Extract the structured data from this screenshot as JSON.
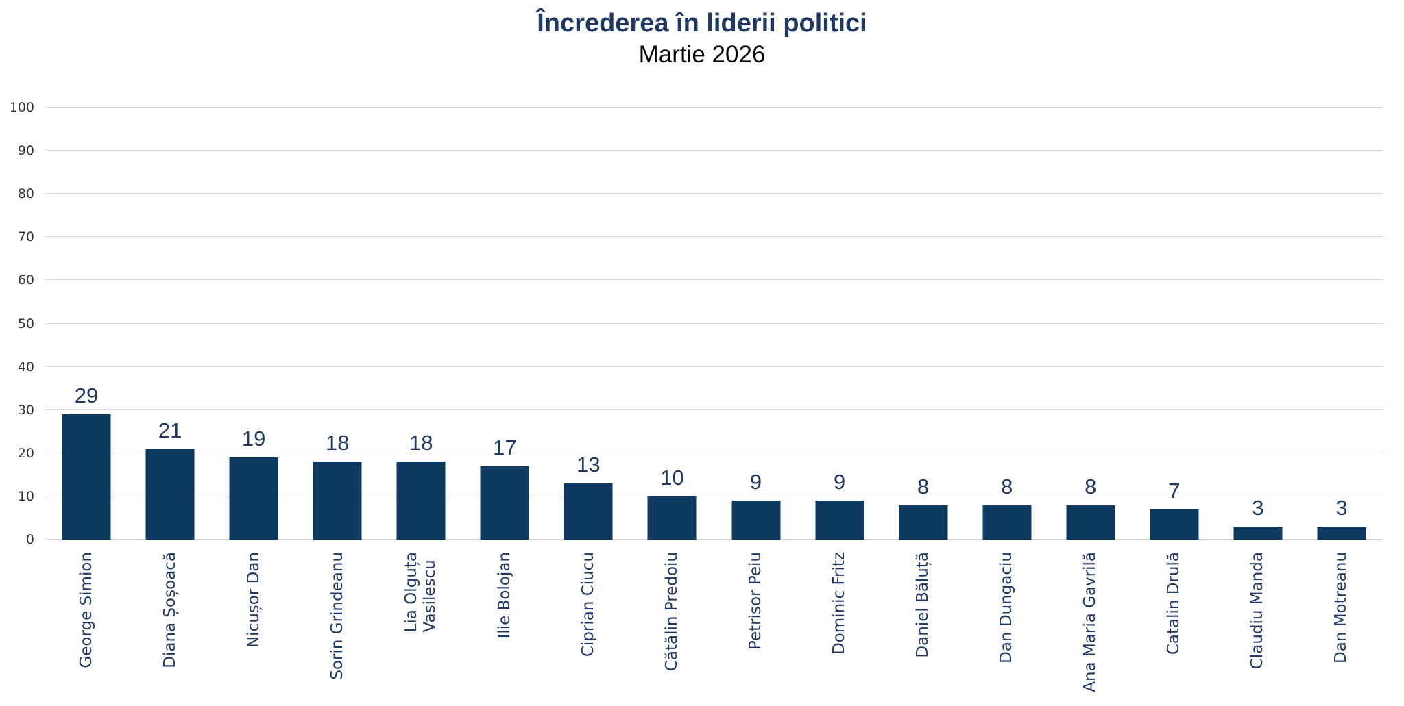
{
  "header": {
    "title": "Încrederea în liderii politici",
    "subtitle": "Martie 2026"
  },
  "chart_data": {
    "type": "bar",
    "title": "Încrederea în liderii politici",
    "subtitle": "Martie 2026",
    "categories": [
      "George Simion",
      "Diana Șoșoacă",
      "Nicușor Dan",
      "Sorin Grindeanu",
      "Lia Olguța Vasilescu",
      "Ilie Bolojan",
      "Ciprian Ciucu",
      "Cătălin Predoiu",
      "Petrisor Peiu",
      "Dominic Fritz",
      "Daniel Băluță",
      "Dan Dungaciu",
      "Ana Maria Gavrilă",
      "Catalin Drulă",
      "Claudiu Manda",
      "Dan Motreanu"
    ],
    "category_display_lines": [
      [
        "George Simion"
      ],
      [
        "Diana Șoșoacă"
      ],
      [
        "Nicușor Dan"
      ],
      [
        "Sorin Grindeanu"
      ],
      [
        "Lia Olguța",
        "Vasilescu"
      ],
      [
        "Ilie Bolojan"
      ],
      [
        "Ciprian Ciucu"
      ],
      [
        "Cătălin Predoiu"
      ],
      [
        "Petrisor Peiu"
      ],
      [
        "Dominic Fritz"
      ],
      [
        "Daniel Băluță"
      ],
      [
        "Dan Dungaciu"
      ],
      [
        "Ana Maria Gavrilă"
      ],
      [
        "Catalin Drulă"
      ],
      [
        "Claudiu Manda"
      ],
      [
        "Dan Motreanu"
      ]
    ],
    "values": [
      29,
      21,
      19,
      18,
      18,
      17,
      13,
      10,
      9,
      9,
      8,
      8,
      8,
      7,
      3,
      3
    ],
    "data_labels_shown": true,
    "xlabel": "",
    "ylabel": "",
    "ylim": [
      0,
      100
    ],
    "yticks": [
      "0",
      "10",
      "20",
      "30",
      "40",
      "50",
      "60",
      "70",
      "80",
      "90",
      "100"
    ],
    "grid": "horizontal",
    "legend": "none",
    "bar_color": "#0E3A62",
    "value_label_color": "#1F3864",
    "category_label_color": "#1F3864",
    "tick_label_color": "#333333",
    "gridline_color": "#D9D9D9",
    "title_color": "#1F3864",
    "subtitle_color": "#000000",
    "background_color": "#FFFFFF"
  }
}
